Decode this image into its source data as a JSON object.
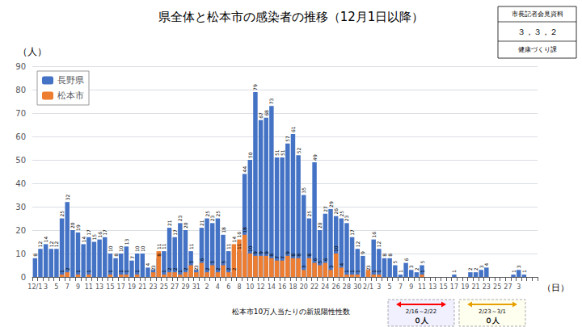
{
  "chart_data": {
    "type": "bar",
    "title": "県全体と松本市の感染者の推移（12月1日以降）",
    "ylabel": "（人）",
    "xlabel": "（日）",
    "annotations": [
      "市長記者会見資料",
      "３，３，２",
      "健康づくり課",
      "松本市10万人当たりの新規陽性性数",
      "2/16～2/22",
      "０人",
      "2/23～3/1",
      "０人"
    ],
    "categories": [
      "12/1",
      null,
      "3",
      null,
      "5",
      null,
      "7",
      null,
      "9",
      null,
      "11",
      null,
      "13",
      null,
      "15",
      null,
      "17",
      null,
      "19",
      null,
      "21",
      null,
      "23",
      null,
      "25",
      null,
      "27",
      null,
      "29",
      null,
      "31",
      null,
      "2",
      null,
      "4",
      null,
      "6",
      null,
      "8",
      null,
      "10",
      null,
      "12",
      null,
      "14",
      null,
      "16",
      null,
      "18",
      null,
      "20",
      null,
      "22",
      null,
      "24",
      null,
      "26",
      null,
      "28",
      null,
      "30",
      null,
      "2/1",
      null,
      "3",
      null,
      "5",
      null,
      "7",
      null,
      "9",
      null,
      "11",
      null,
      "13",
      null,
      "15",
      null,
      "17",
      null,
      "19",
      null,
      "21",
      null,
      "23",
      null,
      "25",
      null,
      "27",
      null,
      "3",
      null,
      null,
      null
    ],
    "series": [
      {
        "name": "長野県",
        "color": "#4472C4",
        "values": [
          8,
          12,
          14,
          12,
          12,
          25,
          32,
          20,
          19,
          14,
          17,
          15,
          16,
          17,
          10,
          8,
          10,
          13,
          7,
          10,
          10,
          4,
          3,
          8,
          11,
          21,
          17,
          23,
          20,
          11,
          3,
          21,
          25,
          23,
          25,
          18,
          11,
          2,
          11,
          44,
          50,
          79,
          67,
          68,
          73,
          51,
          51,
          57,
          61,
          52,
          35,
          25,
          49,
          20,
          27,
          29,
          26,
          25,
          23,
          17,
          12,
          9,
          2,
          16,
          12,
          8,
          8,
          5,
          1,
          6,
          3,
          2,
          5,
          0,
          0,
          0,
          0,
          0,
          1,
          0,
          0,
          2,
          2,
          3,
          4,
          0,
          0,
          0,
          0,
          1,
          3,
          1,
          0,
          0
        ]
      },
      {
        "name": "松本市",
        "color": "#ED7D31",
        "values": [
          0,
          0,
          0,
          0,
          0,
          1,
          2,
          0,
          1,
          0,
          1,
          0,
          0,
          0,
          1,
          0,
          1,
          1,
          0,
          1,
          0,
          0,
          2,
          11,
          1,
          2,
          2,
          1,
          2,
          5,
          2,
          6,
          2,
          5,
          2,
          5,
          2,
          14,
          16,
          18,
          10,
          9,
          9,
          9,
          8,
          7,
          7,
          9,
          8,
          8,
          3,
          8,
          6,
          5,
          6,
          3,
          10,
          4,
          1,
          1,
          1,
          0,
          3,
          1,
          1,
          0,
          0,
          0,
          0,
          0,
          0,
          0,
          1,
          0,
          0,
          0,
          0,
          0,
          0,
          0,
          0,
          0,
          0,
          0,
          0,
          0,
          0,
          0,
          0,
          0,
          0,
          0,
          0,
          0
        ]
      }
    ],
    "ylim": [
      0,
      90
    ],
    "yticks": [
      0,
      10,
      20,
      30,
      40,
      50,
      60,
      70,
      80,
      90
    ],
    "grid": true,
    "legend": "upper left",
    "stacked": false,
    "data_labels": true
  }
}
